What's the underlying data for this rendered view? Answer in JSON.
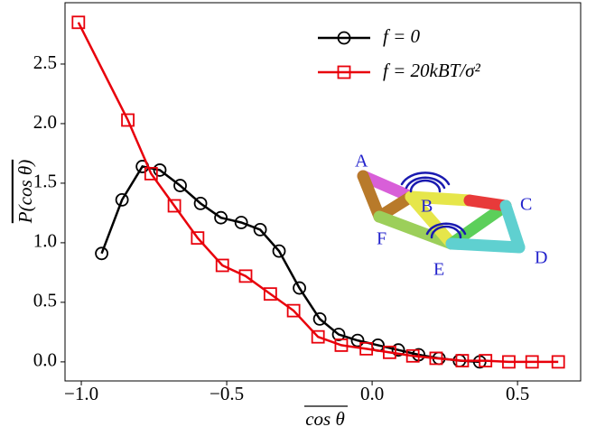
{
  "chart_data": {
    "type": "line",
    "x_label": "cos θ",
    "y_label": "P(cos θ)",
    "xlim": [
      -1.056,
      0.717
    ],
    "ylim": [
      -0.16,
      3.015
    ],
    "xticks": [
      {
        "value": -1.0,
        "label": "−1.0"
      },
      {
        "value": -0.5,
        "label": "−0.5"
      },
      {
        "value": 0,
        "label": "0.0"
      },
      0.5
    ],
    "yticks": [
      {
        "value": 0,
        "label": "0.0"
      },
      0.5,
      {
        "value": 1.0,
        "label": "1.0"
      },
      1.5,
      {
        "value": 2.0,
        "label": "2.0"
      },
      2.5
    ],
    "legend": "upper right",
    "series": [
      {
        "name": "f = 0",
        "color": "#000000",
        "marker": "circle",
        "x": [
          -0.93,
          -0.86,
          -0.79,
          -0.73,
          -0.66,
          -0.59,
          -0.52,
          -0.45,
          -0.385,
          -0.32,
          -0.25,
          -0.18,
          -0.115,
          -0.05,
          0.02,
          0.09,
          0.16,
          0.23,
          0.3,
          0.37
        ],
        "values": [
          0.91,
          1.36,
          1.64,
          1.61,
          1.48,
          1.33,
          1.21,
          1.17,
          1.11,
          0.93,
          0.62,
          0.36,
          0.23,
          0.18,
          0.14,
          0.1,
          0.06,
          0.03,
          0.01,
          0.0
        ]
      },
      {
        "name": "f = 20kBT/σ²",
        "color": "#e8000b",
        "marker": "square",
        "x": [
          -1.01,
          -0.84,
          -0.76,
          -0.68,
          -0.6,
          -0.515,
          -0.435,
          -0.35,
          -0.27,
          -0.186,
          -0.106,
          -0.02,
          0.06,
          0.14,
          0.22,
          0.31,
          0.39,
          0.47,
          0.55,
          0.64
        ],
        "values": [
          2.85,
          2.03,
          1.58,
          1.31,
          1.04,
          0.81,
          0.72,
          0.57,
          0.43,
          0.21,
          0.14,
          0.11,
          0.08,
          0.05,
          0.03,
          0.01,
          0.01,
          0.0,
          0.0,
          0.0
        ]
      }
    ],
    "annotations": [
      "A",
      "B",
      "C",
      "D",
      "E",
      "F"
    ]
  }
}
